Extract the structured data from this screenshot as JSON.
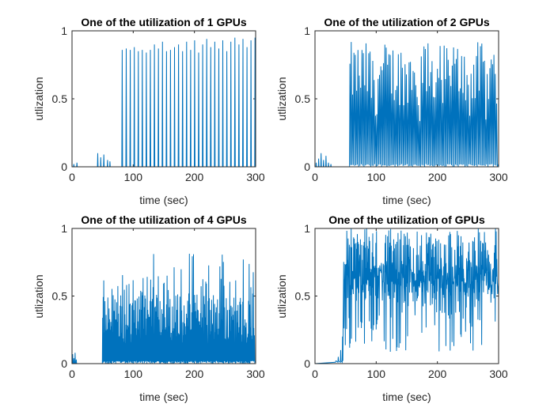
{
  "colors": {
    "series": "#0072BD",
    "axis": "#262626",
    "background": "#ffffff"
  },
  "chart_data": [
    {
      "type": "line",
      "title": "One of the utilization of 1 GPUs",
      "xlabel": "time (sec)",
      "ylabel": "utlization",
      "xlim": [
        0,
        300
      ],
      "ylim": [
        0,
        1
      ],
      "xticks": [
        "0",
        "100",
        "200",
        "300"
      ],
      "yticks": [
        "0",
        "0.5",
        "1"
      ],
      "pattern": {
        "baseline": [
          0,
          300,
          0.0
        ],
        "idle_spikes": [
          [
            3,
            0.02
          ],
          [
            8,
            0.03
          ],
          [
            42,
            0.1
          ],
          [
            47,
            0.07
          ],
          [
            52,
            0.09
          ],
          [
            58,
            0.05
          ],
          [
            62,
            0.04
          ]
        ],
        "spike_peaks": [
          0.86,
          0.87,
          0.86,
          0.88,
          0.85,
          0.86,
          0.84,
          0.86,
          0.9,
          0.87,
          0.92,
          0.85,
          0.86,
          0.88,
          0.9,
          0.85,
          0.92,
          0.86,
          0.93,
          0.84,
          0.9,
          0.94,
          0.88,
          0.92,
          0.87,
          0.93,
          0.85,
          0.92,
          0.95,
          0.9,
          0.94,
          0.88,
          0.93,
          0.95
        ],
        "spike_start": 82,
        "spike_end": 299
      }
    },
    {
      "type": "line",
      "title": "One of the utilization of 2 GPUs",
      "xlabel": "time (sec)",
      "ylabel": "utlization",
      "xlim": [
        0,
        300
      ],
      "ylim": [
        0,
        1
      ],
      "xticks": [
        "0",
        "100",
        "200",
        "300"
      ],
      "yticks": [
        "0",
        "0.5",
        "1"
      ],
      "pattern": {
        "idle_spikes": [
          [
            2,
            0.03
          ],
          [
            6,
            0.06
          ],
          [
            10,
            0.1
          ],
          [
            14,
            0.05
          ],
          [
            18,
            0.08
          ],
          [
            22,
            0.03
          ],
          [
            26,
            0.02
          ]
        ],
        "burst_start": 57,
        "burst_end": 299,
        "burst_peak_range": [
          0.45,
          0.92
        ],
        "burst_count": 110
      }
    },
    {
      "type": "line",
      "title": "One of the utilization of 4 GPUs",
      "xlabel": "time (sec)",
      "ylabel": "utlization",
      "xlim": [
        0,
        300
      ],
      "ylim": [
        0,
        1
      ],
      "xticks": [
        "0",
        "100",
        "200",
        "300"
      ],
      "yticks": [
        "0",
        "0.5",
        "1"
      ],
      "pattern": {
        "idle_spikes": [
          [
            1,
            0.07
          ],
          [
            3,
            0.04
          ],
          [
            5,
            0.08
          ],
          [
            7,
            0.03
          ]
        ],
        "burst_start": 50,
        "burst_end": 299,
        "burst_peak_range": [
          0.25,
          0.83
        ],
        "burst_count": 260
      }
    },
    {
      "type": "line",
      "title": "One of the utilization of  GPUs",
      "xlabel": "time (sec)",
      "ylabel": "utlization",
      "xlim": [
        0,
        300
      ],
      "ylim": [
        0,
        1
      ],
      "xticks": [
        "0",
        "100",
        "200",
        "300"
      ],
      "yticks": [
        "0",
        "0.5",
        "1"
      ],
      "pattern": {
        "idle_spikes": [
          [
            34,
            0.02
          ],
          [
            38,
            0.05
          ],
          [
            42,
            0.1
          ],
          [
            45,
            0.2
          ]
        ],
        "burst_start": 47,
        "burst_end": 299,
        "burst_peak_range": [
          0.55,
          1.0
        ],
        "burst_low_range": [
          0.08,
          0.7
        ],
        "burst_count": 250
      }
    }
  ]
}
